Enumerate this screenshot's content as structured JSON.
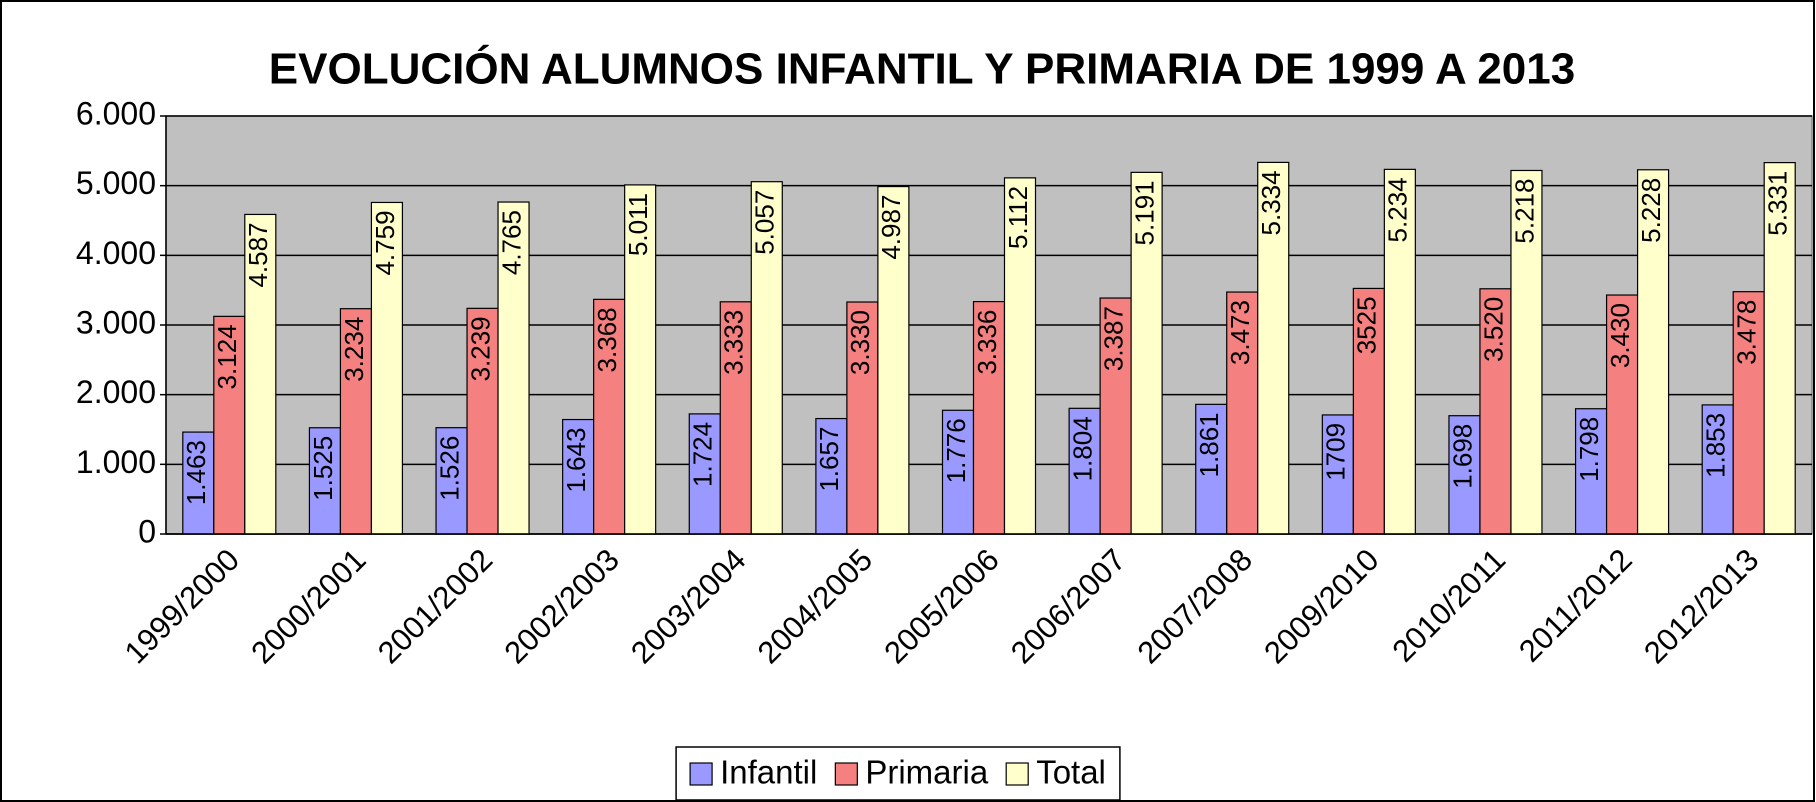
{
  "chart_data": {
    "type": "bar",
    "title": "EVOLUCIÓN ALUMNOS INFANTIL Y PRIMARIA DE 1999 A 2013",
    "categories": [
      "1999/2000",
      "2000/2001",
      "2001/2002",
      "2002/2003",
      "2003/2004",
      "2004/2005",
      "2005/2006",
      "2006/2007",
      "2007/2008",
      "2009/2010",
      "2010/2011",
      "2011/2012",
      "2012/2013"
    ],
    "series": [
      {
        "name": "Infantil",
        "color": "#9999ff",
        "values": [
          1463,
          1525,
          1526,
          1643,
          1724,
          1657,
          1776,
          1804,
          1861,
          1709,
          1698,
          1798,
          1853
        ],
        "value_labels": [
          "1.463",
          "1.525",
          "1.526",
          "1.643",
          "1.724",
          "1.657",
          "1.776",
          "1.804",
          "1.861",
          "1709",
          "1.698",
          "1.798",
          "1.853"
        ]
      },
      {
        "name": "Primaria",
        "color": "#f58080",
        "values": [
          3124,
          3234,
          3239,
          3368,
          3333,
          3330,
          3336,
          3387,
          3473,
          3525,
          3520,
          3430,
          3478
        ],
        "value_labels": [
          "3.124",
          "3.234",
          "3.239",
          "3.368",
          "3.333",
          "3.330",
          "3.336",
          "3.387",
          "3.473",
          "3525",
          "3.520",
          "3.430",
          "3.478"
        ]
      },
      {
        "name": "Total",
        "color": "#ffffcc",
        "values": [
          4587,
          4759,
          4765,
          5011,
          5057,
          4987,
          5112,
          5191,
          5334,
          5234,
          5218,
          5228,
          5331
        ],
        "value_labels": [
          "4.587",
          "4.759",
          "4.765",
          "5.011",
          "5.057",
          "4.987",
          "5.112",
          "5.191",
          "5.334",
          "5.234",
          "5.218",
          "5.228",
          "5.331"
        ]
      }
    ],
    "ylim": [
      0,
      6000
    ],
    "yticks": [
      0,
      {
        "value": 1000,
        "label": "1.000"
      },
      {
        "value": 2000,
        "label": "2.000"
      },
      {
        "value": 3000,
        "label": "3.000"
      },
      {
        "value": 4000,
        "label": "4.000"
      },
      {
        "value": 5000,
        "label": "5.000"
      },
      {
        "value": 6000,
        "label": "6.000"
      }
    ],
    "grid": true,
    "legend": "bottom"
  }
}
